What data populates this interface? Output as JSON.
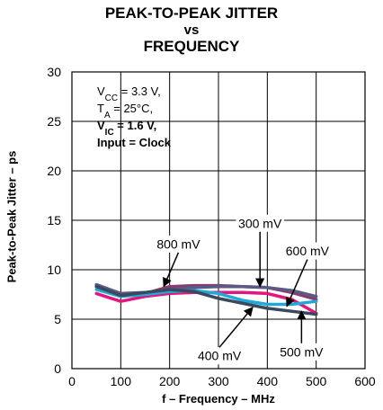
{
  "chart_data": {
    "type": "line",
    "title": [
      "PEAK-TO-PEAK JITTER",
      "vs",
      "FREQUENCY"
    ],
    "xlabel": "f – Frequency – MHz",
    "ylabel": "Peak-to-Peak Jitter – ps",
    "xlim": [
      0,
      600
    ],
    "ylim": [
      0,
      30
    ],
    "xticks": [
      0,
      100,
      200,
      300,
      400,
      500,
      600
    ],
    "yticks": [
      0,
      5,
      10,
      15,
      20,
      25,
      30
    ],
    "grid": true,
    "conditions": [
      {
        "base": "V",
        "sub": "CC",
        "rest": " = 3.3 V,",
        "bold": false
      },
      {
        "base": "T",
        "sub": "A",
        "rest": " = 25°C,",
        "bold": false
      },
      {
        "base": "V",
        "sub": "IC",
        "rest": " = 1.6 V,",
        "bold": true
      },
      {
        "base": "Input = Clock",
        "sub": "",
        "rest": "",
        "bold": true
      }
    ],
    "series": [
      {
        "name": "800 mV",
        "color": "#8b3a6e",
        "x": [
          50,
          100,
          150,
          200,
          250,
          300,
          350,
          400,
          450,
          500
        ],
        "y": [
          8.3,
          7.6,
          7.6,
          8.3,
          8.4,
          8.4,
          8.3,
          8.2,
          7.7,
          7.0
        ]
      },
      {
        "name": "300 mV",
        "color": "#5a5a86",
        "x": [
          50,
          100,
          150,
          200,
          250,
          300,
          350,
          400,
          450,
          500
        ],
        "y": [
          8.5,
          7.6,
          7.7,
          8.0,
          8.2,
          8.3,
          8.3,
          8.2,
          7.9,
          7.3
        ]
      },
      {
        "name": "600 mV",
        "color": "#e0177f",
        "x": [
          50,
          100,
          150,
          200,
          250,
          300,
          350,
          400,
          450,
          500
        ],
        "y": [
          7.6,
          6.8,
          7.3,
          7.6,
          7.7,
          7.7,
          7.7,
          7.6,
          7.0,
          5.6
        ]
      },
      {
        "name": "500 mV",
        "color": "#22a8d8",
        "x": [
          50,
          100,
          150,
          200,
          250,
          300,
          350,
          400,
          450,
          500
        ],
        "y": [
          8.0,
          7.3,
          7.5,
          7.8,
          7.9,
          7.6,
          6.9,
          6.5,
          6.5,
          6.8
        ]
      },
      {
        "name": "400 mV",
        "color": "#3a4a5c",
        "x": [
          50,
          100,
          150,
          200,
          250,
          300,
          350,
          400,
          450,
          500
        ],
        "y": [
          8.3,
          7.4,
          7.7,
          8.0,
          7.8,
          7.1,
          6.6,
          6.1,
          5.8,
          5.5
        ]
      }
    ],
    "annotations": [
      {
        "text": "800 mV",
        "label_x": 218,
        "label_y": 12.6,
        "arrow_to_x": 188,
        "arrow_to_y": 8.3
      },
      {
        "text": "300 mV",
        "label_x": 385,
        "label_y": 14.7,
        "arrow_to_x": 385,
        "arrow_to_y": 8.3
      },
      {
        "text": "600 mV",
        "label_x": 482,
        "label_y": 11.9,
        "arrow_to_x": 440,
        "arrow_to_y": 6.3
      },
      {
        "text": "400 mV",
        "label_x": 302,
        "label_y": 1.3,
        "arrow_to_x": 370,
        "arrow_to_y": 6.2
      },
      {
        "text": "500 mV",
        "label_x": 470,
        "label_y": 1.7,
        "arrow_to_x": 470,
        "arrow_to_y": 5.8
      }
    ]
  }
}
